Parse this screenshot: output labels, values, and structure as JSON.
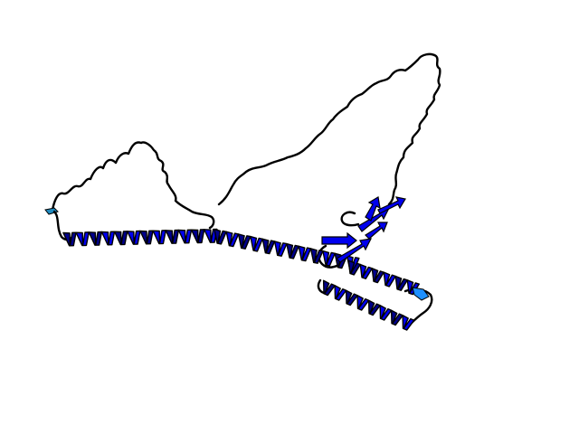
{
  "structure": {
    "kind": "protein-ribbon-model",
    "colors": {
      "background": "#ffffff",
      "coil": "#000000",
      "helix": "#0000ee",
      "helix_shade": "#00008b",
      "outline": "#000000",
      "helix_end": "#1e90ff",
      "terminus": "#1f8ac0"
    }
  }
}
